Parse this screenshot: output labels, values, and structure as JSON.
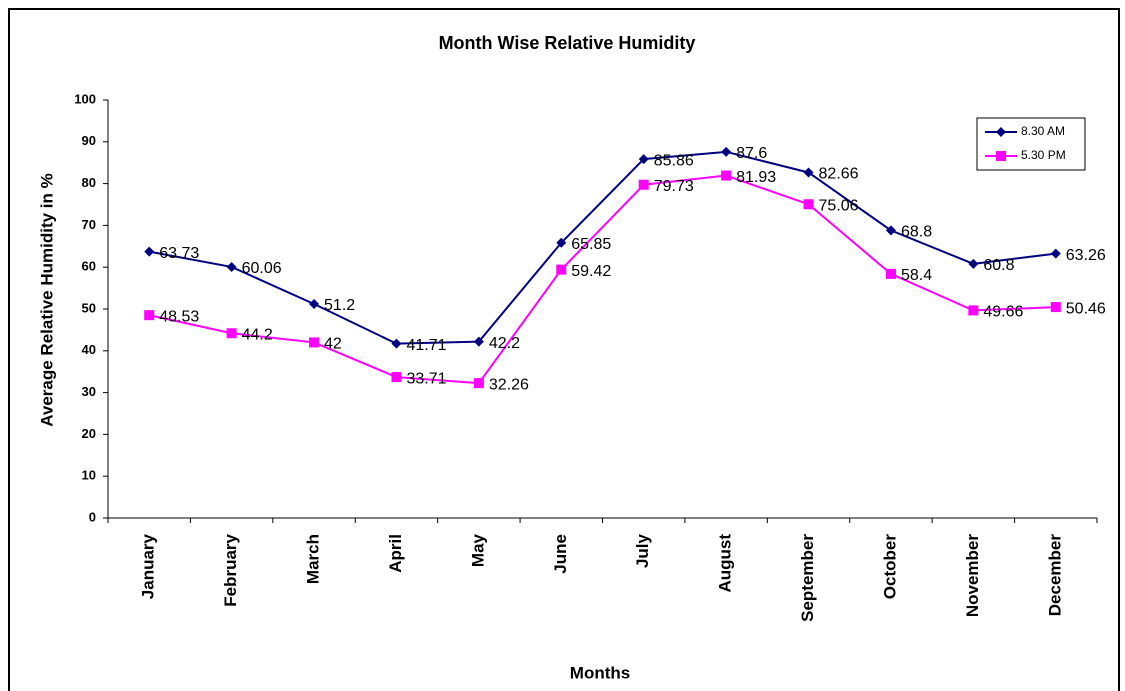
{
  "chart_data": {
    "type": "line",
    "title": "Month Wise Relative Humidity",
    "x_label": "Months",
    "y_label": "Average Relative Humidity in %",
    "categories": [
      "January",
      "February",
      "March",
      "April",
      "May",
      "June",
      "July",
      "August",
      "September",
      "October",
      "November",
      "December"
    ],
    "series": [
      {
        "name": "8.30 AM",
        "color": "#000080",
        "marker": "diamond",
        "values": [
          63.73,
          60.06,
          51.2,
          41.71,
          42.2,
          65.85,
          85.86,
          87.6,
          82.66,
          68.8,
          60.8,
          63.26
        ]
      },
      {
        "name": "5.30 PM",
        "color": "#ff00ff",
        "marker": "square",
        "values": [
          48.53,
          44.2,
          42,
          33.71,
          32.26,
          59.42,
          79.73,
          81.93,
          75.06,
          58.4,
          49.66,
          50.46
        ]
      }
    ],
    "ylim": [
      0,
      100
    ],
    "yticks": [
      0,
      10,
      20,
      30,
      40,
      50,
      60,
      70,
      80,
      90,
      100
    ],
    "grid": false,
    "legend": "upper-right"
  }
}
